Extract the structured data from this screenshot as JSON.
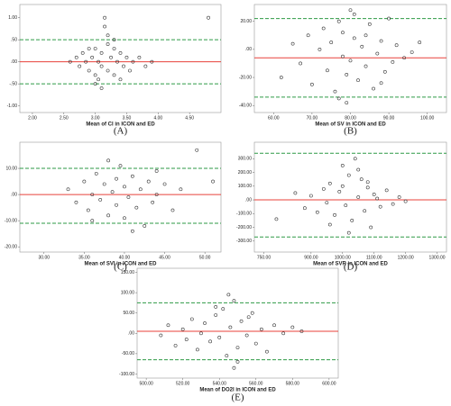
{
  "chart_data": [
    {
      "type": "scatter",
      "xlabel": "Mean of CI in ICON and ED",
      "caption": "(A)",
      "xlim": [
        1.8,
        5.0
      ],
      "ylim": [
        -1.15,
        1.3
      ],
      "xticks": [
        {
          "value": 2,
          "label": "2.00"
        },
        {
          "value": 2.5,
          "label": "2.50"
        },
        {
          "value": 3,
          "label": "3.00"
        },
        {
          "value": 3.5,
          "label": "3.50"
        },
        {
          "value": 4,
          "label": "4.00"
        },
        {
          "value": 4.5,
          "label": "4.50"
        }
      ],
      "yticks": [
        {
          "value": 1,
          "label": "1.00"
        },
        {
          "value": 0.5,
          "label": ".50"
        },
        {
          "value": 0,
          "label": ".00"
        },
        {
          "value": -0.5,
          "label": "-.50"
        },
        {
          "value": -1,
          "label": "-1.00"
        }
      ],
      "hlines": [
        {
          "value": 0.5,
          "color": "#2e9a46",
          "dash": true
        },
        {
          "value": 0,
          "color": "#e8413a",
          "dash": false
        },
        {
          "value": -0.5,
          "color": "#2e9a46",
          "dash": true
        }
      ],
      "color": "#333",
      "x": [
        2.6,
        2.7,
        2.75,
        2.8,
        2.85,
        2.9,
        2.95,
        3.0,
        3.0,
        3.05,
        3.1,
        3.1,
        3.15,
        3.2,
        3.2,
        3.25,
        3.3,
        3.3,
        3.35,
        3.4,
        3.45,
        3.5,
        3.55,
        3.6,
        3.7,
        3.8,
        3.9,
        3.0,
        3.2,
        3.4,
        2.9,
        3.1,
        4.8,
        3.15,
        3.3,
        3.05
      ],
      "values": [
        0.0,
        0.1,
        -0.1,
        0.2,
        0.0,
        -0.2,
        0.1,
        0.3,
        -0.3,
        0.0,
        0.2,
        -0.1,
        0.8,
        0.4,
        -0.2,
        0.1,
        0.3,
        -0.3,
        0.0,
        0.2,
        -0.1,
        0.1,
        -0.2,
        0.0,
        0.1,
        -0.1,
        0.0,
        -0.5,
        0.6,
        -0.4,
        0.3,
        -0.6,
        1.0,
        1.0,
        0.5,
        -0.4
      ]
    },
    {
      "type": "scatter",
      "xlabel": "Mean of SV in ICON and ED",
      "caption": "(B)",
      "xlim": [
        55,
        105
      ],
      "ylim": [
        -45,
        32
      ],
      "xticks": [
        {
          "value": 60,
          "label": "60.00"
        },
        {
          "value": 70,
          "label": "70.00"
        },
        {
          "value": 80,
          "label": "80.00"
        },
        {
          "value": 90,
          "label": "90.00"
        },
        {
          "value": 100,
          "label": "100.00"
        }
      ],
      "yticks": [
        {
          "value": 20,
          "label": "20.00"
        },
        {
          "value": 0,
          "label": ".00"
        },
        {
          "value": -20,
          "label": "-20.00"
        },
        {
          "value": -40,
          "label": "-40.00"
        }
      ],
      "hlines": [
        {
          "value": 22,
          "color": "#2e9a46",
          "dash": true
        },
        {
          "value": -6,
          "color": "#e8413a",
          "dash": false
        },
        {
          "value": -34,
          "color": "#2e9a46",
          "dash": true
        }
      ],
      "color": "#333",
      "x": [
        62,
        65,
        67,
        69,
        70,
        72,
        73,
        74,
        75,
        76,
        77,
        78,
        78,
        79,
        80,
        80,
        81,
        82,
        83,
        84,
        85,
        86,
        87,
        88,
        89,
        90,
        91,
        92,
        94,
        96,
        98,
        79,
        81,
        77,
        84,
        88
      ],
      "values": [
        -20,
        4,
        -10,
        10,
        -25,
        0,
        15,
        -15,
        5,
        -30,
        20,
        -5,
        12,
        -18,
        28,
        -8,
        8,
        -22,
        2,
        -12,
        18,
        -28,
        -3,
        6,
        -16,
        22,
        -9,
        3,
        -6,
        -2,
        5,
        -38,
        25,
        -35,
        10,
        -24
      ]
    },
    {
      "type": "scatter",
      "xlabel": "Mean of SVI in ICON and ED",
      "caption": "(C)",
      "xlim": [
        27,
        52
      ],
      "ylim": [
        -22,
        20
      ],
      "xticks": [
        {
          "value": 30,
          "label": "30.00"
        },
        {
          "value": 35,
          "label": "35.00"
        },
        {
          "value": 40,
          "label": "40.00"
        },
        {
          "value": 45,
          "label": "45.00"
        },
        {
          "value": 50,
          "label": "50.00"
        }
      ],
      "yticks": [
        {
          "value": 10,
          "label": "10.00"
        },
        {
          "value": 0,
          "label": ".00"
        },
        {
          "value": -10,
          "label": "-10.00"
        },
        {
          "value": -20,
          "label": "-20.00"
        }
      ],
      "hlines": [
        {
          "value": 10,
          "color": "#2e9a46",
          "dash": true
        },
        {
          "value": 0,
          "color": "#e8413a",
          "dash": false
        },
        {
          "value": -11,
          "color": "#2e9a46",
          "dash": true
        }
      ],
      "color": "#333",
      "x": [
        33,
        34,
        35,
        35.5,
        36,
        36.5,
        37,
        37.5,
        38,
        38.5,
        39,
        39,
        39.5,
        40,
        40,
        40.5,
        41,
        41.5,
        42,
        42.5,
        43,
        43.5,
        44,
        45,
        46,
        47,
        49,
        51,
        38,
        41,
        36,
        44
      ],
      "values": [
        2,
        -3,
        5,
        -6,
        0,
        8,
        -2,
        4,
        -8,
        1,
        6,
        -4,
        11,
        -9,
        3,
        -1,
        7,
        -5,
        2,
        -12,
        5,
        -3,
        0,
        4,
        -6,
        2,
        17,
        5,
        13,
        -14,
        -10,
        9
      ]
    },
    {
      "type": "scatter",
      "xlabel": "Mean of SVR in ICON and ED",
      "caption": "(D)",
      "xlim": [
        720,
        1330
      ],
      "ylim": [
        -380,
        420
      ],
      "xticks": [
        {
          "value": 750,
          "label": "750.00"
        },
        {
          "value": 900,
          "label": "900.00"
        },
        {
          "value": 1000,
          "label": "1000.00"
        },
        {
          "value": 1100,
          "label": "1100.00"
        },
        {
          "value": 1200,
          "label": "1200.00"
        },
        {
          "value": 1300,
          "label": "1300.00"
        }
      ],
      "yticks": [
        {
          "value": 300,
          "label": "300.00"
        },
        {
          "value": 200,
          "label": "200.00"
        },
        {
          "value": 100,
          "label": "100.00"
        },
        {
          "value": 0,
          "label": ".00"
        },
        {
          "value": -100,
          "label": "-100.00"
        },
        {
          "value": -200,
          "label": "-200.00"
        },
        {
          "value": -300,
          "label": "-300.00"
        }
      ],
      "hlines": [
        {
          "value": 340,
          "color": "#2e9a46",
          "dash": true
        },
        {
          "value": 0,
          "color": "#e8413a",
          "dash": false
        },
        {
          "value": -270,
          "color": "#2e9a46",
          "dash": true
        }
      ],
      "color": "#333",
      "x": [
        790,
        850,
        880,
        900,
        920,
        940,
        950,
        960,
        975,
        990,
        1000,
        1010,
        1020,
        1030,
        1040,
        1050,
        1060,
        1070,
        1080,
        1090,
        1100,
        1110,
        1120,
        1140,
        1160,
        1180,
        1200,
        1020,
        1050,
        960,
        1000,
        1080
      ],
      "values": [
        -140,
        50,
        -60,
        30,
        -90,
        80,
        -20,
        120,
        -110,
        60,
        250,
        -40,
        180,
        -150,
        300,
        20,
        150,
        -80,
        90,
        -200,
        40,
        10,
        -50,
        70,
        -30,
        20,
        -10,
        -240,
        220,
        -180,
        100,
        130
      ]
    },
    {
      "type": "scatter",
      "xlabel": "Mean of DO2I in ICON and ED",
      "caption": "(E)",
      "xlim": [
        495,
        605
      ],
      "ylim": [
        -110,
        160
      ],
      "xticks": [
        {
          "value": 500,
          "label": "500.00"
        },
        {
          "value": 520,
          "label": "520.00"
        },
        {
          "value": 540,
          "label": "540.00"
        },
        {
          "value": 560,
          "label": "560.00"
        },
        {
          "value": 580,
          "label": "580.00"
        },
        {
          "value": 600,
          "label": "600.00"
        }
      ],
      "yticks": [
        {
          "value": 150,
          "label": "150.00"
        },
        {
          "value": 100,
          "label": "100.00"
        },
        {
          "value": 50,
          "label": "50.00"
        },
        {
          "value": 0,
          "label": ".00"
        },
        {
          "value": -50,
          "label": "-50.00"
        },
        {
          "value": -100,
          "label": "-100.00"
        }
      ],
      "hlines": [
        {
          "value": 75,
          "color": "#2e9a46",
          "dash": true
        },
        {
          "value": 5,
          "color": "#e8413a",
          "dash": false
        },
        {
          "value": -65,
          "color": "#2e9a46",
          "dash": true
        }
      ],
      "color": "#333",
      "x": [
        508,
        512,
        516,
        520,
        522,
        525,
        528,
        530,
        532,
        535,
        538,
        540,
        542,
        544,
        546,
        548,
        550,
        552,
        555,
        558,
        560,
        563,
        566,
        570,
        575,
        580,
        585,
        545,
        548,
        538,
        550,
        556
      ],
      "values": [
        -5,
        20,
        -30,
        10,
        -15,
        35,
        -40,
        0,
        25,
        -20,
        45,
        -10,
        60,
        -55,
        15,
        80,
        -35,
        30,
        -5,
        50,
        -25,
        10,
        -45,
        20,
        0,
        15,
        5,
        95,
        -85,
        65,
        -70,
        40
      ]
    }
  ]
}
